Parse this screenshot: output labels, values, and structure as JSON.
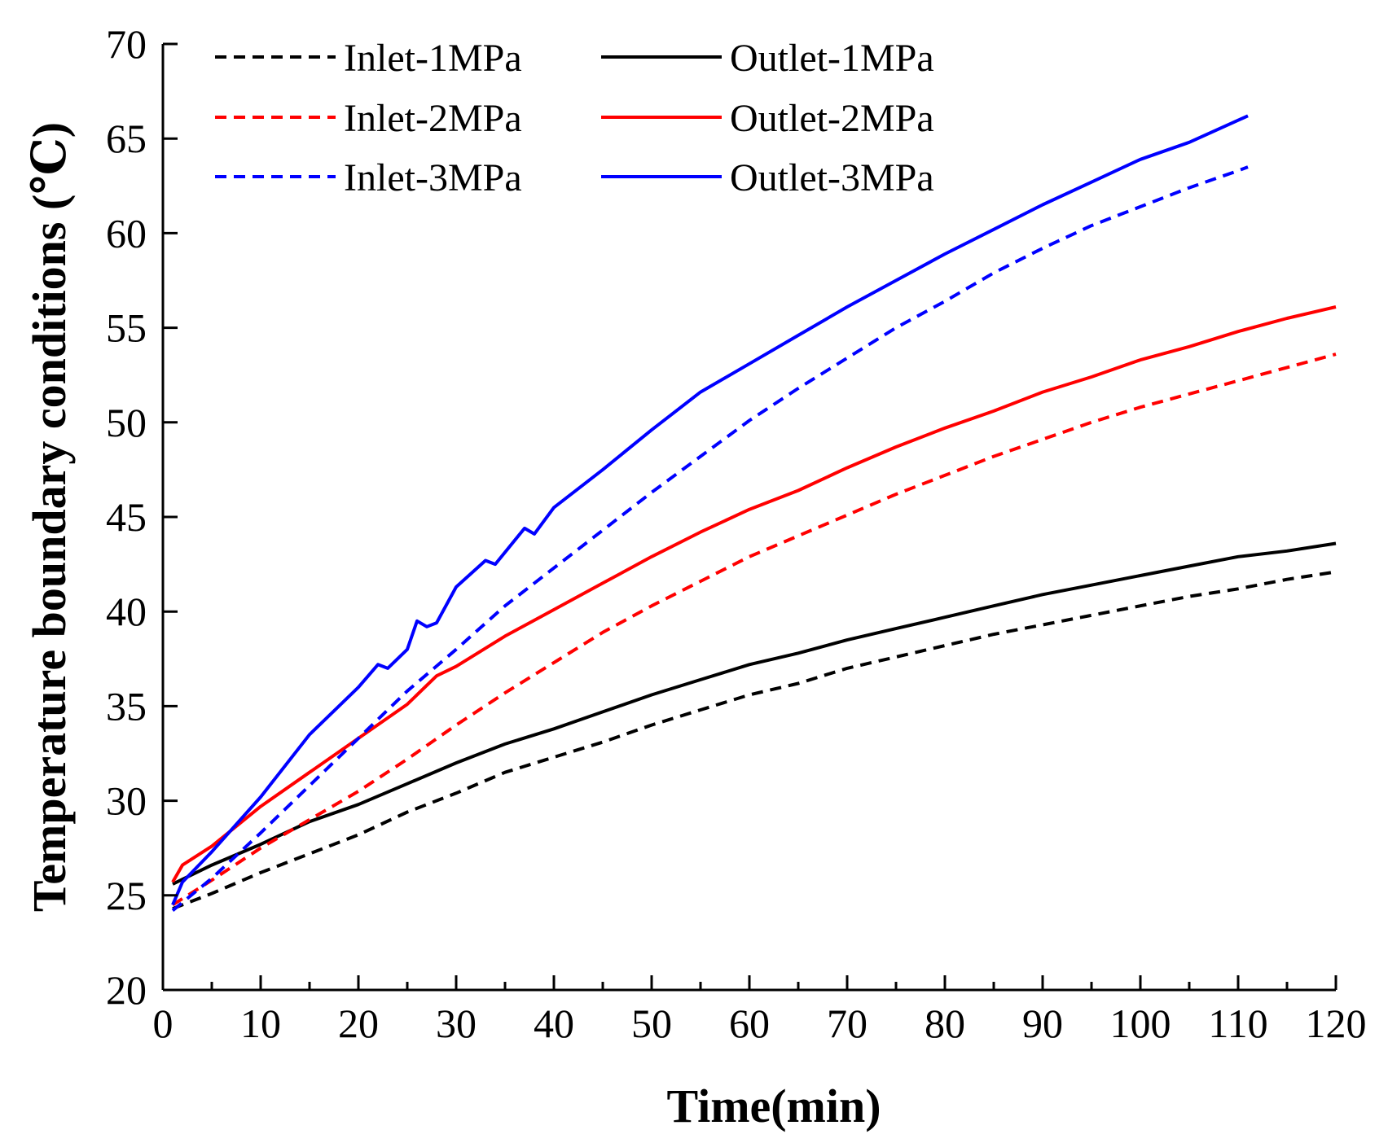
{
  "chart_data": {
    "type": "line",
    "title": "",
    "xlabel": "Time(min)",
    "ylabel": "Temperature boundary conditions (℃)",
    "xlim": [
      0,
      120
    ],
    "ylim": [
      20,
      70
    ],
    "xticks": [
      0,
      10,
      20,
      30,
      40,
      50,
      60,
      70,
      80,
      90,
      100,
      110,
      120
    ],
    "yticks": [
      20,
      25,
      30,
      35,
      40,
      45,
      50,
      55,
      60,
      65,
      70
    ],
    "grid": false,
    "legend_position": "top-left",
    "series": [
      {
        "name": "Inlet-1MPa",
        "color": "#000000",
        "dash": true,
        "x": [
          1,
          5,
          10,
          15,
          20,
          25,
          30,
          35,
          40,
          45,
          50,
          55,
          60,
          65,
          70,
          75,
          80,
          85,
          90,
          95,
          100,
          105,
          110,
          115,
          120
        ],
        "y": [
          24.3,
          25.1,
          26.2,
          27.2,
          28.2,
          29.4,
          30.4,
          31.5,
          32.3,
          33.1,
          34.0,
          34.8,
          35.6,
          36.2,
          37.0,
          37.6,
          38.2,
          38.8,
          39.3,
          39.8,
          40.3,
          40.8,
          41.2,
          41.7,
          42.1
        ]
      },
      {
        "name": "Outlet-1MPa",
        "color": "#000000",
        "dash": false,
        "x": [
          1,
          5,
          10,
          15,
          20,
          25,
          30,
          35,
          40,
          45,
          50,
          55,
          60,
          65,
          70,
          75,
          80,
          85,
          90,
          95,
          100,
          105,
          110,
          115,
          120
        ],
        "y": [
          25.6,
          26.6,
          27.7,
          28.9,
          29.8,
          30.9,
          32.0,
          33.0,
          33.8,
          34.7,
          35.6,
          36.4,
          37.2,
          37.8,
          38.5,
          39.1,
          39.7,
          40.3,
          40.9,
          41.4,
          41.9,
          42.4,
          42.9,
          43.2,
          43.6
        ]
      },
      {
        "name": "Inlet-2MPa",
        "color": "#ff0000",
        "dash": true,
        "x": [
          1,
          5,
          10,
          15,
          20,
          25,
          30,
          35,
          40,
          45,
          50,
          55,
          60,
          65,
          70,
          75,
          80,
          85,
          90,
          95,
          100,
          105,
          110,
          115,
          120
        ],
        "y": [
          24.5,
          25.8,
          27.5,
          29.0,
          30.5,
          32.2,
          34.0,
          35.7,
          37.3,
          38.9,
          40.3,
          41.6,
          42.9,
          44.0,
          45.1,
          46.2,
          47.2,
          48.2,
          49.1,
          50.0,
          50.8,
          51.5,
          52.2,
          52.9,
          53.6
        ]
      },
      {
        "name": "Outlet-2MPa",
        "color": "#ff0000",
        "dash": false,
        "x": [
          1,
          2,
          5,
          10,
          15,
          20,
          25,
          28,
          30,
          35,
          40,
          45,
          50,
          55,
          60,
          65,
          70,
          75,
          80,
          85,
          90,
          95,
          100,
          105,
          110,
          115,
          120
        ],
        "y": [
          25.7,
          26.6,
          27.6,
          29.7,
          31.5,
          33.3,
          35.1,
          36.6,
          37.1,
          38.7,
          40.1,
          41.5,
          42.9,
          44.2,
          45.4,
          46.4,
          47.6,
          48.7,
          49.7,
          50.6,
          51.6,
          52.4,
          53.3,
          54.0,
          54.8,
          55.5,
          56.1
        ]
      },
      {
        "name": "Inlet-3MPa",
        "color": "#0000ff",
        "dash": true,
        "x": [
          1,
          5,
          10,
          15,
          20,
          25,
          30,
          35,
          40,
          45,
          50,
          55,
          60,
          65,
          70,
          75,
          80,
          85,
          90,
          95,
          100,
          105,
          110,
          111
        ],
        "y": [
          24.2,
          25.9,
          28.3,
          30.8,
          33.3,
          35.8,
          38.0,
          40.3,
          42.3,
          44.3,
          46.3,
          48.2,
          50.1,
          51.8,
          53.4,
          55.0,
          56.4,
          57.9,
          59.2,
          60.4,
          61.4,
          62.4,
          63.3,
          63.5
        ]
      },
      {
        "name": "Outlet-3MPa",
        "color": "#0000ff",
        "dash": false,
        "x": [
          1,
          2,
          5,
          10,
          15,
          20,
          22,
          23,
          25,
          26,
          27,
          28,
          30,
          33,
          34,
          37,
          38,
          40,
          45,
          50,
          55,
          60,
          65,
          70,
          75,
          80,
          85,
          90,
          95,
          100,
          105,
          111
        ],
        "y": [
          24.5,
          25.7,
          27.3,
          30.2,
          33.5,
          36.0,
          37.2,
          37.0,
          38.0,
          39.5,
          39.2,
          39.4,
          41.3,
          42.7,
          42.5,
          44.4,
          44.1,
          45.5,
          47.5,
          49.6,
          51.6,
          53.1,
          54.6,
          56.1,
          57.5,
          58.9,
          60.2,
          61.5,
          62.7,
          63.9,
          64.8,
          66.2
        ]
      }
    ]
  }
}
